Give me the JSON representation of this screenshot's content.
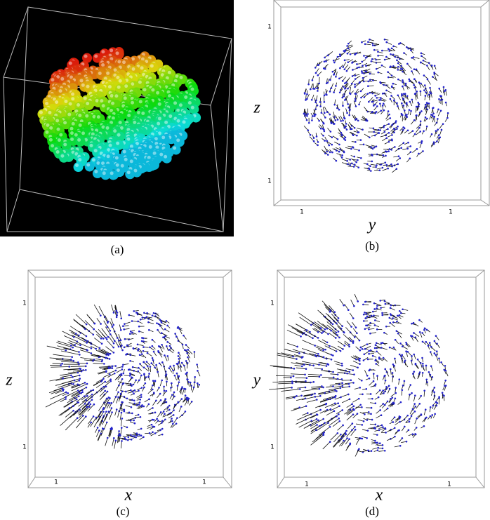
{
  "figure": {
    "panels": [
      {
        "caption": "(a)"
      },
      {
        "caption": "(b)",
        "vertical_axis": "z",
        "horizontal_axis": "y",
        "ticks": [
          "1",
          "1",
          "1",
          "1"
        ]
      },
      {
        "caption": "(c)",
        "vertical_axis": "z",
        "horizontal_axis": "x",
        "ticks": [
          "1",
          "1",
          "1",
          "1"
        ]
      },
      {
        "caption": "(d)",
        "vertical_axis": "y",
        "horizontal_axis": "x",
        "ticks": [
          "1",
          "1",
          "1",
          "1"
        ]
      }
    ]
  }
}
